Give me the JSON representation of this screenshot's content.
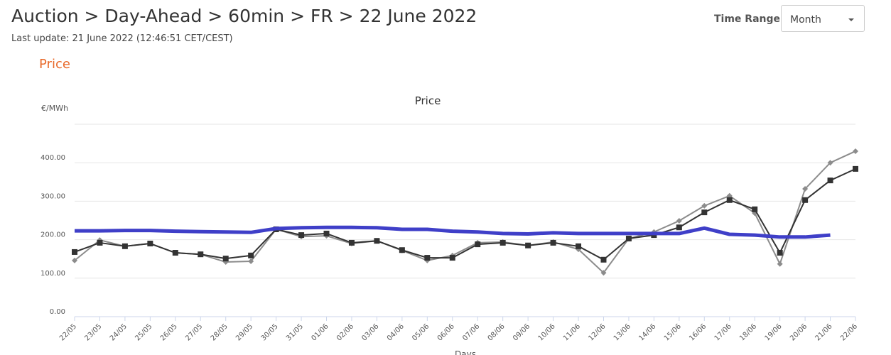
{
  "header": {
    "title": "Auction > Day-Ahead > 60min > FR > 22 June 2022",
    "last_update": "Last update: 21 June 2022 (12:46:51 CET/CEST)",
    "time_range_label": "Time Range",
    "time_range_value": "Month",
    "section": "Price"
  },
  "chart_data": {
    "type": "line",
    "title": "Price",
    "y_label": "€/MWh",
    "x_label": "Days",
    "categories": [
      "22/05",
      "23/05",
      "24/05",
      "25/05",
      "26/05",
      "27/05",
      "28/05",
      "29/05",
      "30/05",
      "31/05",
      "01/06",
      "02/06",
      "03/06",
      "04/06",
      "05/06",
      "06/06",
      "07/06",
      "08/06",
      "09/06",
      "10/06",
      "11/06",
      "12/06",
      "13/06",
      "14/06",
      "15/06",
      "16/06",
      "17/06",
      "18/06",
      "19/06",
      "20/06",
      "21/06",
      "22/06"
    ],
    "series": [
      {
        "color": "#8c8c8c",
        "marker": "diamond",
        "values": [
          146,
          199,
          183,
          190,
          166,
          162,
          142,
          144,
          227,
          208,
          210,
          190,
          197,
          172,
          146,
          159,
          192,
          194,
          185,
          194,
          175,
          114,
          203,
          220,
          249,
          288,
          314,
          269,
          137,
          332,
          400,
          430
        ]
      },
      {
        "color": "#333333",
        "marker": "square",
        "values": [
          168,
          192,
          183,
          190,
          166,
          162,
          151,
          159,
          227,
          212,
          216,
          192,
          197,
          173,
          153,
          153,
          188,
          192,
          185,
          192,
          183,
          148,
          203,
          212,
          232,
          271,
          303,
          279,
          166,
          303,
          354,
          384
        ]
      },
      {
        "color": "#3f3fc8",
        "marker": "none",
        "values": [
          223,
          223,
          224,
          224,
          222,
          221,
          220,
          219,
          229,
          231,
          232,
          232,
          231,
          227,
          227,
          222,
          220,
          216,
          215,
          218,
          216,
          216,
          216,
          216,
          216,
          230,
          214,
          212,
          207,
          207,
          212,
          null
        ]
      }
    ],
    "ylim": [
      0,
      500
    ],
    "yticks": [
      {
        "value": 0,
        "label": "0.00"
      },
      {
        "value": 100,
        "label": "100.00"
      },
      {
        "value": 200,
        "label": "200.00"
      },
      {
        "value": 300,
        "label": "300.00"
      },
      {
        "value": 400,
        "label": "400.00"
      }
    ],
    "grid": true
  }
}
